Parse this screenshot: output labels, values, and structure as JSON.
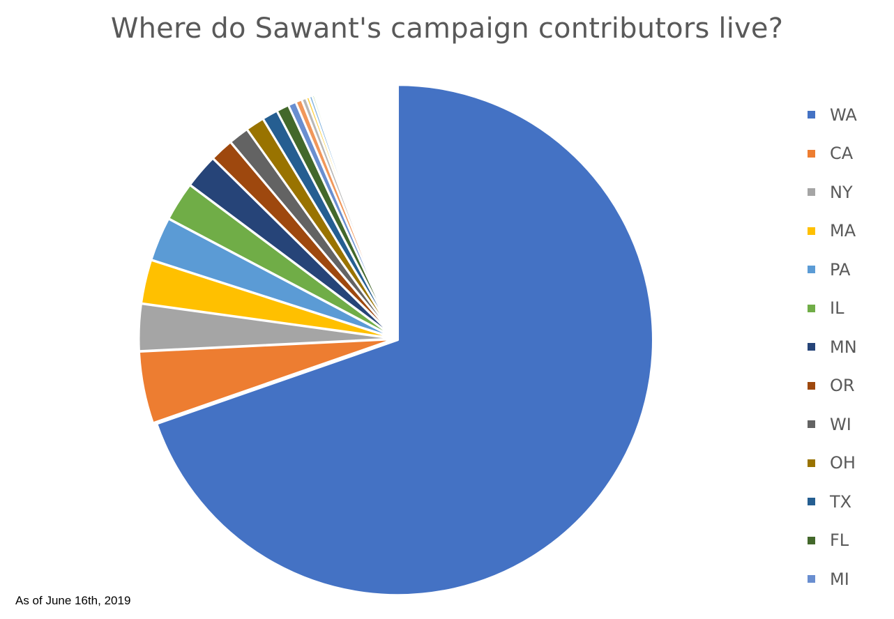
{
  "chart_data": {
    "type": "pie",
    "title": "Where do Sawant's campaign contributors live?",
    "legend_position": "right",
    "slices": [
      {
        "label": "WA",
        "value": 70.4,
        "color": "#4472C4"
      },
      {
        "label": "CA",
        "value": 4.6,
        "color": "#ED7D31"
      },
      {
        "label": "NY",
        "value": 3.0,
        "color": "#A5A5A5"
      },
      {
        "label": "MA",
        "value": 2.8,
        "color": "#FFC000"
      },
      {
        "label": "PA",
        "value": 2.8,
        "color": "#5B9BD5"
      },
      {
        "label": "IL",
        "value": 2.5,
        "color": "#70AD47"
      },
      {
        "label": "MN",
        "value": 2.2,
        "color": "#264478"
      },
      {
        "label": "OR",
        "value": 1.5,
        "color": "#9E480E"
      },
      {
        "label": "WI",
        "value": 1.3,
        "color": "#636363"
      },
      {
        "label": "OH",
        "value": 1.2,
        "color": "#997300"
      },
      {
        "label": "TX",
        "value": 1.0,
        "color": "#255E91"
      },
      {
        "label": "FL",
        "value": 0.8,
        "color": "#43682B"
      },
      {
        "label": "MI",
        "value": 0.5,
        "color": "#698ED0"
      },
      {
        "label": "",
        "value": 0.4,
        "color": "#F1975A"
      },
      {
        "label": "",
        "value": 0.3,
        "color": "#B7B7B7"
      },
      {
        "label": "",
        "value": 0.2,
        "color": "#FFCD33"
      },
      {
        "label": "",
        "value": 0.2,
        "color": "#7CAFDD"
      },
      {
        "label": "",
        "value": 0.15,
        "color": "#8CC168"
      },
      {
        "label": "",
        "value": 0.1,
        "color": "#335AA1"
      },
      {
        "label": "",
        "value": 0.1,
        "color": "#D26012"
      },
      {
        "label": "",
        "value": 0.08,
        "color": "#848484"
      },
      {
        "label": "",
        "value": 0.07,
        "color": "#CC9A00"
      }
    ],
    "gap_after_last_slice": 4.85
  },
  "footnote": "As of June 16th, 2019"
}
